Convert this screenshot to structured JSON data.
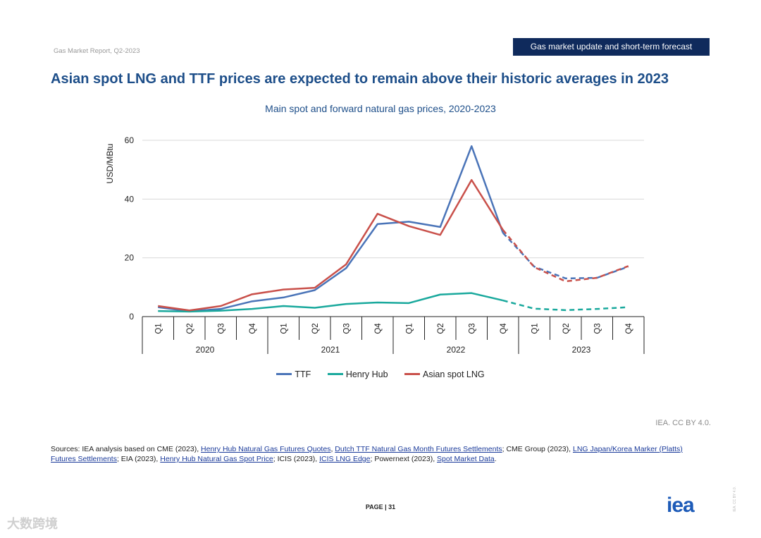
{
  "header": {
    "report_label": "Gas Market Report, Q2-2023",
    "section_badge": "Gas market update and short-term forecast"
  },
  "main_title": "Asian spot LNG and TTF prices are expected to remain above their historic averages in 2023",
  "chart_data": {
    "type": "line",
    "title": "Main spot and forward natural gas prices, 2020-2023",
    "xlabel": "",
    "ylabel": "USD/MBtu",
    "ylim": [
      0,
      60
    ],
    "yticks": [
      0,
      20,
      40,
      60
    ],
    "grid": true,
    "categories": [
      "Q1",
      "Q2",
      "Q3",
      "Q4",
      "Q1",
      "Q2",
      "Q3",
      "Q4",
      "Q1",
      "Q2",
      "Q3",
      "Q4",
      "Q1",
      "Q2",
      "Q3",
      "Q4"
    ],
    "years": [
      "2020",
      "2021",
      "2022",
      "2023"
    ],
    "forecast_from_index": 11,
    "series": [
      {
        "name": "TTF",
        "color": "#4a74b8",
        "values": [
          3.2,
          1.8,
          2.6,
          5.2,
          6.5,
          9.0,
          16.5,
          31.5,
          32.3,
          30.5,
          58.0,
          28.5,
          17.0,
          13.0,
          13.2,
          17.0
        ]
      },
      {
        "name": "Henry Hub",
        "color": "#1aa99d",
        "values": [
          1.9,
          1.7,
          2.0,
          2.6,
          3.6,
          3.0,
          4.3,
          4.8,
          4.6,
          7.5,
          8.0,
          5.5,
          2.7,
          2.2,
          2.6,
          3.2
        ]
      },
      {
        "name": "Asian spot LNG",
        "color": "#c9504a",
        "values": [
          3.6,
          2.1,
          3.6,
          7.6,
          9.2,
          9.8,
          17.8,
          35.0,
          30.8,
          27.8,
          46.5,
          29.5,
          16.8,
          12.0,
          13.2,
          17.2
        ]
      }
    ]
  },
  "credit": "IEA. CC BY 4.0.",
  "sources": {
    "prefix": "Sources: IEA analysis based on CME (2023), ",
    "link1": "Henry Hub Natural Gas Futures Quotes",
    "sep1": ", ",
    "link2": "Dutch TTF Natural Gas Month Futures Settlements",
    "sep2": "; CME Group (2023), ",
    "link3": "LNG Japan/Korea Marker (Platts) Futures Settlements",
    "sep3": "; EIA (2023), ",
    "link4": "Henry Hub Natural Gas Spot Price",
    "sep4": "; ICIS (2023), ",
    "link5": "ICIS LNG Edge",
    "sep5": "; Powernext (2023), ",
    "link6": "Spot Market Data",
    "suffix": "."
  },
  "page_number": "PAGE | 31",
  "logo_text": "iea",
  "side_license": "IEA. CC BY 4.0.",
  "watermark": "大数跨境"
}
